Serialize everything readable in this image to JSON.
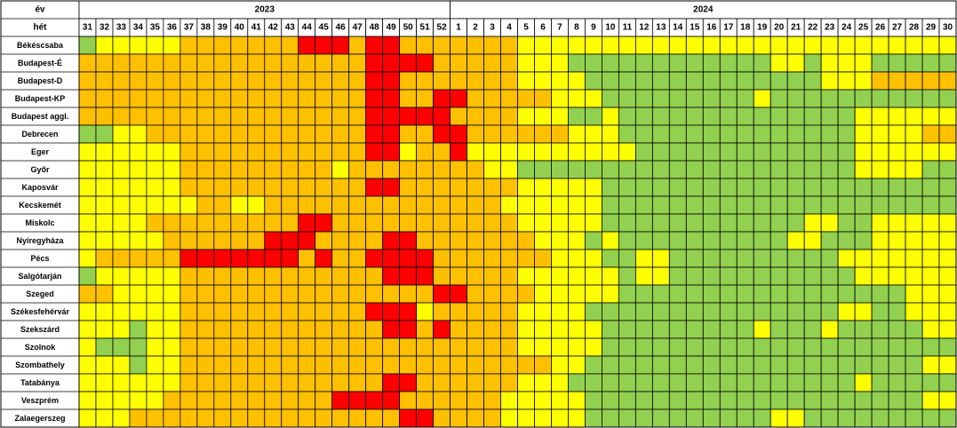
{
  "chart_data": {
    "type": "heatmap",
    "row_header_year": "év",
    "row_header_week": "hét",
    "years": [
      {
        "label": "2023",
        "week_count": 22
      },
      {
        "label": "2024",
        "week_count": 30
      }
    ],
    "weeks": [
      "31",
      "32",
      "33",
      "34",
      "35",
      "36",
      "37",
      "38",
      "39",
      "40",
      "41",
      "42",
      "43",
      "44",
      "45",
      "46",
      "47",
      "48",
      "49",
      "50",
      "51",
      "52",
      "1",
      "2",
      "3",
      "4",
      "5",
      "6",
      "7",
      "8",
      "9",
      "10",
      "11",
      "12",
      "13",
      "14",
      "15",
      "16",
      "17",
      "18",
      "19",
      "20",
      "21",
      "22",
      "23",
      "24",
      "25",
      "26",
      "27",
      "28",
      "29",
      "30"
    ],
    "level_colors": {
      "G": "#92d050",
      "Y": "#ffff00",
      "O": "#ffc000",
      "R": "#ff0000"
    },
    "rows": [
      {
        "label": "Békéscsaba",
        "levels": "GYYYYYOOOOOOORRRORROOOOOOOYYYYYYYYYYYYYYYYYYYYYYYYYY"
      },
      {
        "label": "Budapest-É",
        "levels": "OOOOOOOOOOOOOOOOORRRROOOOOYYYGGGGGGGGGGGGYYGYYYGGGGG"
      },
      {
        "label": "Budapest-D",
        "levels": "OOOOOOOOOOOOOOOOORROOOOOOOYYYYGGGGGGGGGGGGGGYYYOOOOO"
      },
      {
        "label": "Budapest-KP",
        "levels": "OOOOOOOOOOOOOOOOORROORROOOOOYYYGGGGGGGGGYGGGGGGGGGGG"
      },
      {
        "label": "Budapest aggl.",
        "levels": "OOOOOOOOOOOOOOOOORRRRROOOOYYYGGYGGGGGGGGGGGGGGYYYYYY"
      },
      {
        "label": "Debrecen",
        "levels": "GGYYOOOOOOOOOOOOORROORROOOOOOYYYGGGGGGGGGGGGGGYYYYOO"
      },
      {
        "label": "Eger",
        "levels": "YYYYYYOOOOOOOOOOORRYOORYYYYYYYYYYGGGGGGGGGGGGGYYYYYY"
      },
      {
        "label": "Győr",
        "levels": "YYYYYYOOOOOOOOOYOOOOOOOOYYGGGGGGGGGGGGGGGGGGGGYYYYGG"
      },
      {
        "label": "Kaposvár",
        "levels": "YYYYYYOOOOOOOOOOORROOOOOOOYYYYYGGGGGGGGGGGGGGGGGGGGG"
      },
      {
        "label": "Kecskemét",
        "levels": "YYYYYYYOOYYOOOOOOOOOOOOOOYYYYYYGGGGGGGGGGGGGGGGGGGGG"
      },
      {
        "label": "Miskolc",
        "levels": "YYYYOOOOOOOOORROOOOOOOOOOOYYYYYGGGGGGGGGGGGYYGGYYYYY"
      },
      {
        "label": "Nyíregyháza",
        "levels": "YYYYYOOOOOORRROOOORROOOOOOOYYYGYGGGGGGGGGGYYGGGYYYYY"
      },
      {
        "label": "Pécs",
        "levels": "YOOOOORRRRRRROROORRRROOOOOOOYYYGGYYGGGGGGGGGGYYYYYYY"
      },
      {
        "label": "Salgótarján",
        "levels": "GYYYYYOOOOOOOOOOOORRROOOOOYYYYYYGYYGGGGGGGGGGGYYYYYY"
      },
      {
        "label": "Szeged",
        "levels": "OOYYYYOOOOOOOOOOOOOOORROOOOYYYYYGGGGGGGGGGGGGGGGGYYY"
      },
      {
        "label": "Székesfehérvár",
        "levels": "YYYYYYOOOOOOOOOOORRRYOOOOOYYYYGGGGGGGGGGGGGGGYYGGYYY"
      },
      {
        "label": "Szekszárd",
        "levels": "YYYGYYOOOOOOOOOOOORROROOOOYYYYYGGGGGGGGGYGGGYGGGGGYY"
      },
      {
        "label": "Szolnok",
        "levels": "YGGGYYOOOOOOOOOOOOOOOOOOOOYYYYYGGGGGGGGGGGGGGGGGGGGG"
      },
      {
        "label": "Szombathely",
        "levels": "YYYGYYOOOOOOOOOOOOOOOOOOOOOOYYGGGGGGGGGGGGGGGGGGGGYY"
      },
      {
        "label": "Tatabánya",
        "levels": "YYYYYYOOOOOOOOOOOORROOOOOOYYYGGGGGGGGGGGGGGGGGYGGGGG"
      },
      {
        "label": "Veszprém",
        "levels": "YYYYYOOOOOOOOOORRRROOOOOOYYYYYGGGGGGGGGGGGGGGGGGGGYY"
      },
      {
        "label": "Zalaegerszeg",
        "levels": "YYYOOOOOOOOOOOOOOOORROOOOYYYYYGGGGGGGGGGGYYGGGGGGGGG"
      }
    ]
  }
}
